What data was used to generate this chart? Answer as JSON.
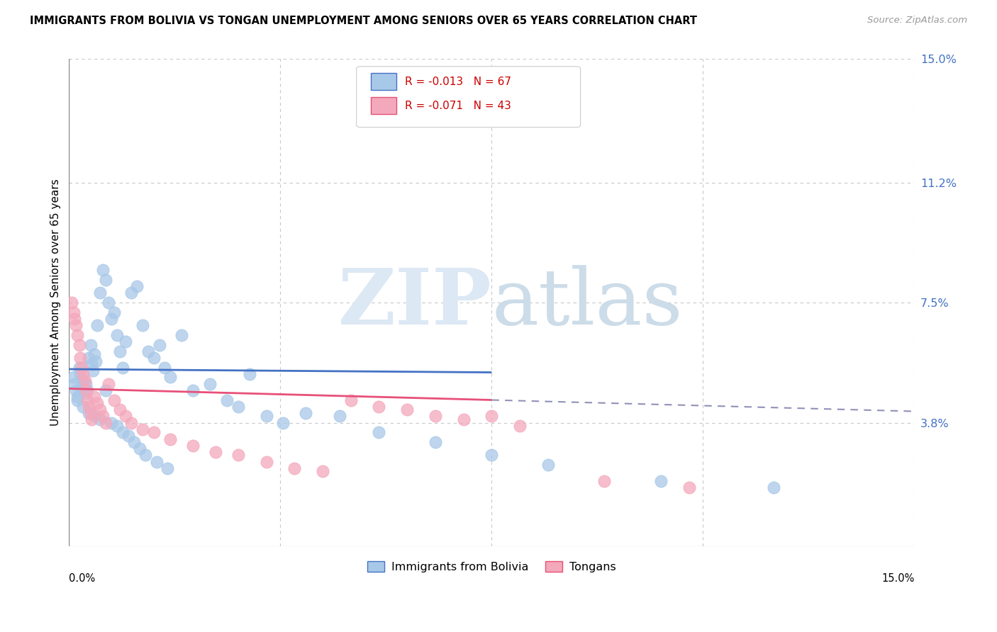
{
  "title": "IMMIGRANTS FROM BOLIVIA VS TONGAN UNEMPLOYMENT AMONG SENIORS OVER 65 YEARS CORRELATION CHART",
  "source": "Source: ZipAtlas.com",
  "ylabel": "Unemployment Among Seniors over 65 years",
  "xmin": 0.0,
  "xmax": 15.0,
  "ymin": 0.0,
  "ymax": 15.0,
  "yticks": [
    3.8,
    7.5,
    11.2,
    15.0
  ],
  "ytick_labels": [
    "3.8%",
    "7.5%",
    "11.2%",
    "15.0%"
  ],
  "legend1_r": "-0.013",
  "legend1_n": "67",
  "legend2_r": "-0.071",
  "legend2_n": "43",
  "legend1_label": "Immigrants from Bolivia",
  "legend2_label": "Tongans",
  "bolivia_color": "#a8c8e8",
  "tongan_color": "#f4a8bc",
  "bolivia_line_color": "#4472c4",
  "tongan_line_color": "#e8507a",
  "dashed_line_color": "#9090b8",
  "grid_color": "#c8c8c8",
  "bolivia_x": [
    0.08,
    0.1,
    0.12,
    0.15,
    0.18,
    0.2,
    0.22,
    0.25,
    0.28,
    0.3,
    0.32,
    0.35,
    0.38,
    0.4,
    0.42,
    0.45,
    0.48,
    0.5,
    0.55,
    0.6,
    0.65,
    0.7,
    0.75,
    0.8,
    0.85,
    0.9,
    0.95,
    1.0,
    1.1,
    1.2,
    1.3,
    1.4,
    1.5,
    1.6,
    1.7,
    1.8,
    2.0,
    2.2,
    2.5,
    2.8,
    3.0,
    3.2,
    3.5,
    3.8,
    4.2,
    4.8,
    5.5,
    6.5,
    7.5,
    8.5,
    10.5,
    12.5,
    0.15,
    0.25,
    0.35,
    0.45,
    0.55,
    0.65,
    0.75,
    0.85,
    0.95,
    1.05,
    1.15,
    1.25,
    1.35,
    1.55,
    1.75
  ],
  "bolivia_y": [
    5.2,
    5.0,
    4.8,
    4.6,
    5.5,
    5.3,
    4.9,
    5.1,
    4.7,
    5.0,
    4.8,
    5.8,
    6.2,
    5.6,
    5.4,
    5.9,
    5.7,
    6.8,
    7.8,
    8.5,
    8.2,
    7.5,
    7.0,
    7.2,
    6.5,
    6.0,
    5.5,
    6.3,
    7.8,
    8.0,
    6.8,
    6.0,
    5.8,
    6.2,
    5.5,
    5.2,
    6.5,
    4.8,
    5.0,
    4.5,
    4.3,
    5.3,
    4.0,
    3.8,
    4.1,
    4.0,
    3.5,
    3.2,
    2.8,
    2.5,
    2.0,
    1.8,
    4.5,
    4.3,
    4.1,
    4.0,
    3.9,
    4.8,
    3.8,
    3.7,
    3.5,
    3.4,
    3.2,
    3.0,
    2.8,
    2.6,
    2.4
  ],
  "tongan_x": [
    0.05,
    0.08,
    0.1,
    0.12,
    0.15,
    0.18,
    0.2,
    0.22,
    0.25,
    0.28,
    0.3,
    0.32,
    0.35,
    0.38,
    0.4,
    0.45,
    0.5,
    0.55,
    0.6,
    0.65,
    0.7,
    0.8,
    0.9,
    1.0,
    1.1,
    1.3,
    1.5,
    1.8,
    2.2,
    2.6,
    3.0,
    3.5,
    4.0,
    4.5,
    5.0,
    5.5,
    6.0,
    6.5,
    7.0,
    7.5,
    8.0,
    9.5,
    11.0
  ],
  "tongan_y": [
    7.5,
    7.2,
    7.0,
    6.8,
    6.5,
    6.2,
    5.8,
    5.5,
    5.3,
    5.1,
    4.8,
    4.5,
    4.3,
    4.1,
    3.9,
    4.6,
    4.4,
    4.2,
    4.0,
    3.8,
    5.0,
    4.5,
    4.2,
    4.0,
    3.8,
    3.6,
    3.5,
    3.3,
    3.1,
    2.9,
    2.8,
    2.6,
    2.4,
    2.3,
    4.5,
    4.3,
    4.2,
    4.0,
    3.9,
    4.0,
    3.7,
    2.0,
    1.8
  ],
  "bolivia_trend_x0": 0.0,
  "bolivia_trend_y0": 5.45,
  "bolivia_trend_x1": 7.5,
  "bolivia_trend_y1": 5.35,
  "tongan_solid_x0": 0.0,
  "tongan_solid_y0": 4.85,
  "tongan_solid_x1": 7.5,
  "tongan_solid_y1": 4.5,
  "tongan_dash_x0": 7.5,
  "tongan_dash_y0": 4.5,
  "tongan_dash_x1": 15.0,
  "tongan_dash_y1": 4.15
}
